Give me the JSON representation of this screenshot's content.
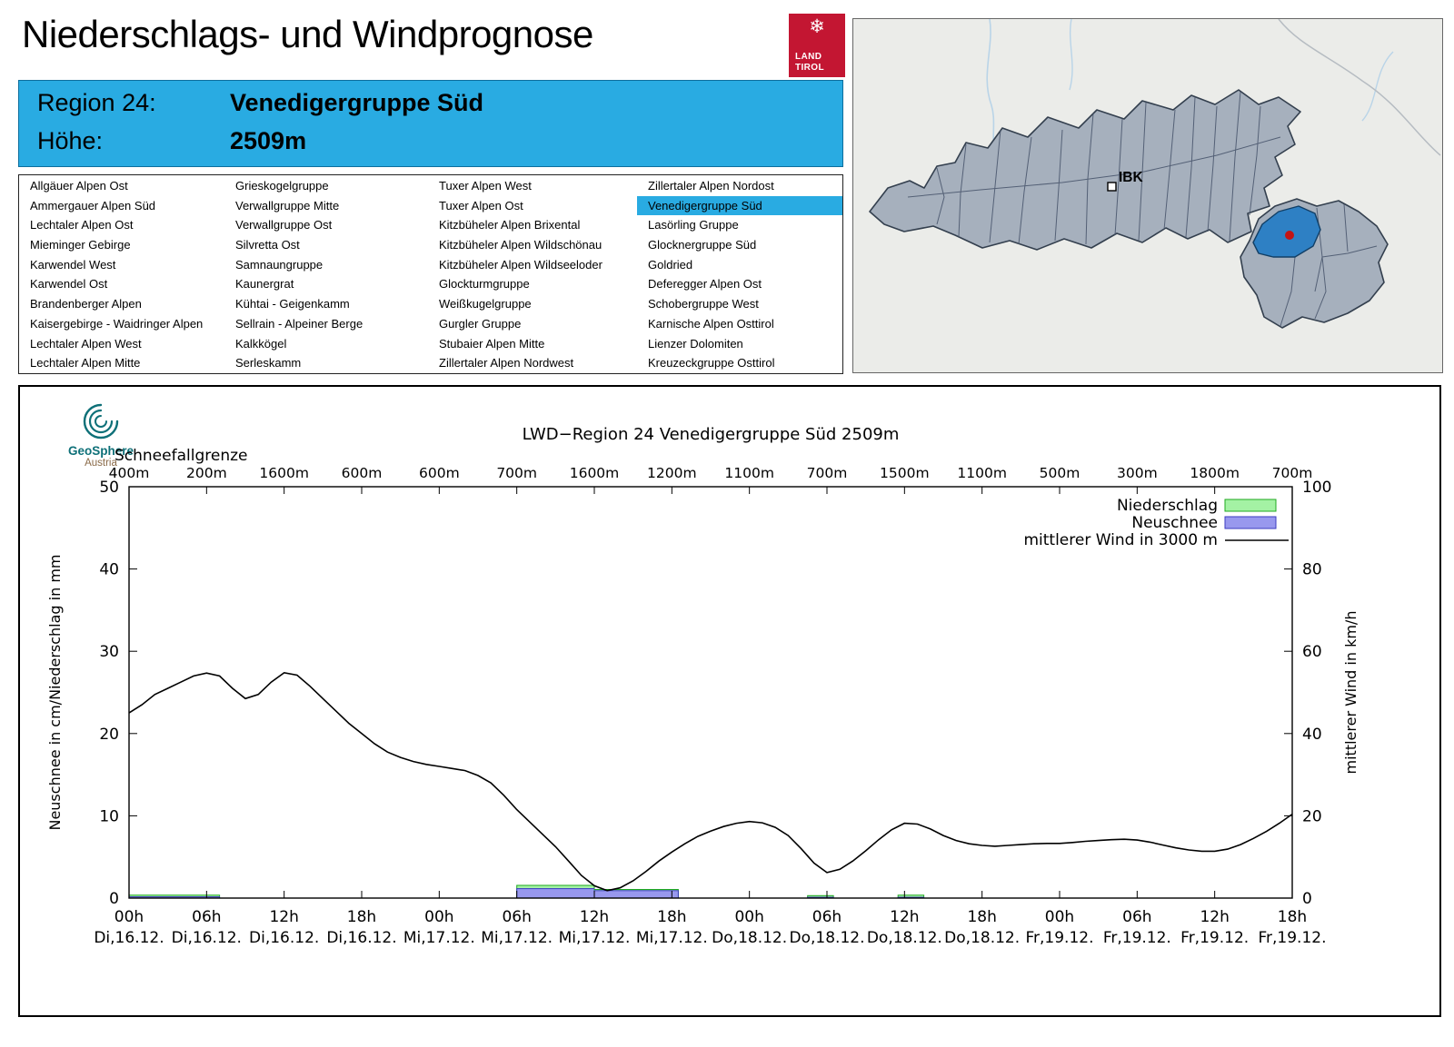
{
  "header": {
    "title": "Niederschlags- und Windprognose"
  },
  "logo": {
    "line1": "LAND",
    "line2": "TIROL",
    "snowflake_icon": "❄"
  },
  "region_box": {
    "region_label": "Region 24:",
    "region_name": "Venedigergruppe Süd",
    "altitude_label": "Höhe:",
    "altitude_value": "2509m"
  },
  "region_list": {
    "selected": "Venedigergruppe Süd",
    "columns": [
      [
        "Allgäuer Alpen Ost",
        "Ammergauer Alpen Süd",
        "Lechtaler Alpen Ost",
        "Mieminger Gebirge",
        "Karwendel West",
        "Karwendel Ost",
        "Brandenberger Alpen",
        "Kaisergebirge - Waidringer Alpen",
        "Lechtaler Alpen West",
        "Lechtaler Alpen Mitte"
      ],
      [
        "Grieskogelgruppe",
        "Verwallgruppe Mitte",
        "Verwallgruppe Ost",
        "Silvretta Ost",
        "Samnaungruppe",
        "Kaunergrat",
        "Kühtai - Geigenkamm",
        "Sellrain - Alpeiner Berge",
        "Kalkkögel",
        "Serleskamm"
      ],
      [
        "Tuxer Alpen West",
        "Tuxer Alpen Ost",
        "Kitzbüheler Alpen Brixental",
        "Kitzbüheler Alpen Wildschönau",
        "Kitzbüheler Alpen Wildseeloder",
        "Glockturmgruppe",
        "Weißkugelgruppe",
        "Gurgler Gruppe",
        "Stubaier Alpen Mitte",
        "Zillertaler Alpen Nordwest"
      ],
      [
        "Zillertaler Alpen Nordost",
        "Venedigergruppe Süd",
        "Lasörling Gruppe",
        "Glocknergruppe Süd",
        "Goldried",
        "Deferegger Alpen Ost",
        "Schobergruppe West",
        "Karnische Alpen Osttirol",
        "Lienzer Dolomiten",
        "Kreuzeckgruppe Osttirol"
      ]
    ]
  },
  "map": {
    "ibk_label": "IBK",
    "highlight_color": "#2e80c4",
    "marker_color": "#c41414"
  },
  "geosphere": {
    "name": "GeoSphere",
    "country": "Austria"
  },
  "chart_data": {
    "type": "bar+line",
    "title": "LWD−Region 24 Venedigergruppe Süd 2509m",
    "top_axis": {
      "label": "Schneefallgrenze",
      "values": [
        "400m",
        "200m",
        "1600m",
        "600m",
        "600m",
        "700m",
        "1600m",
        "1200m",
        "1100m",
        "700m",
        "1500m",
        "1100m",
        "500m",
        "300m",
        "1800m",
        "700m"
      ]
    },
    "x_axis": {
      "hour_values": [
        0,
        6,
        12,
        18,
        24,
        30,
        36,
        42,
        48,
        54,
        60,
        66,
        72,
        78,
        84,
        90
      ],
      "hours": [
        "00h",
        "06h",
        "12h",
        "18h",
        "00h",
        "06h",
        "12h",
        "18h",
        "00h",
        "06h",
        "12h",
        "18h",
        "00h",
        "06h",
        "12h",
        "18h"
      ],
      "dates": [
        "Di,16.12.",
        "Di,16.12.",
        "Di,16.12.",
        "Di,16.12.",
        "Mi,17.12.",
        "Mi,17.12.",
        "Mi,17.12.",
        "Mi,17.12.",
        "Do,18.12.",
        "Do,18.12.",
        "Do,18.12.",
        "Do,18.12.",
        "Fr,19.12.",
        "Fr,19.12.",
        "Fr,19.12.",
        "Fr,19.12."
      ]
    },
    "axes": {
      "left": {
        "label": "Neuschnee in cm/Niederschlag in mm",
        "min": 0,
        "max": 50,
        "step": 10
      },
      "right": {
        "label": "mittlerer Wind in km/h",
        "min": 0,
        "max": 100,
        "step": 20
      }
    },
    "legend": [
      {
        "label": "Niederschlag",
        "type": "box",
        "fill": "#a4f2a4",
        "edge": "#1faa1f"
      },
      {
        "label": "Neuschnee",
        "type": "box",
        "fill": "#9898ee",
        "edge": "#3b3bc0"
      },
      {
        "label": "mittlerer Wind in 3000 m",
        "type": "line",
        "color": "#000000"
      }
    ],
    "bars": [
      {
        "start": 0,
        "end": 7,
        "precip": 0.35,
        "snow": 0.15
      },
      {
        "start": 30,
        "end": 36,
        "precip": 1.55,
        "snow": 1.15
      },
      {
        "start": 36,
        "end": 42.5,
        "precip": 1.05,
        "snow": 0.9
      },
      {
        "start": 52.5,
        "end": 54.5,
        "precip": 0.3,
        "snow": 0.1
      },
      {
        "start": 59.5,
        "end": 61.5,
        "precip": 0.35,
        "snow": 0.1
      }
    ],
    "wind": {
      "start": 0,
      "step": 1,
      "unit": "km/h",
      "values": [
        45,
        47,
        49.5,
        51,
        52.5,
        54,
        54.7,
        54,
        51,
        48.5,
        49.5,
        52.5,
        54.8,
        54.2,
        51.5,
        48.5,
        45.5,
        42.5,
        40,
        37.5,
        35.5,
        34.2,
        33.2,
        32.5,
        32,
        31.5,
        31,
        29.8,
        28,
        25,
        21.5,
        18.5,
        15.5,
        12.5,
        9,
        5.5,
        3,
        1.8,
        2.5,
        4.2,
        6.5,
        9,
        11.2,
        13.2,
        15,
        16.3,
        17.4,
        18.2,
        18.6,
        18.3,
        17.2,
        15.2,
        12,
        8.5,
        6.2,
        7,
        9,
        11.5,
        14.2,
        16.6,
        18.2,
        18,
        16.8,
        15.2,
        14,
        13.2,
        12.8,
        12.6,
        12.8,
        13,
        13.2,
        13.3,
        13.3,
        13.5,
        13.8,
        14,
        14.2,
        14.3,
        14.1,
        13.6,
        12.9,
        12.2,
        11.7,
        11.4,
        11.4,
        11.9,
        13,
        14.5,
        16.2,
        18.2,
        20.4
      ]
    }
  }
}
